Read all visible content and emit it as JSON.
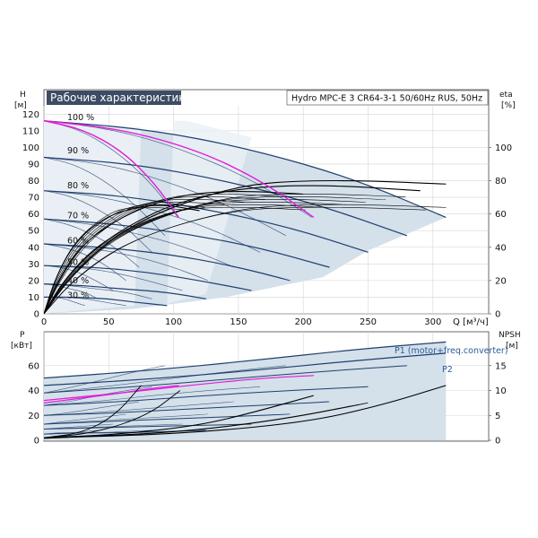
{
  "chart_data": [
    {
      "type": "line",
      "title": "Рабочие характеристики",
      "subtitle": "Hydro MPC-E 3 CR64-3-1 50/60Hz RUS, 50Hz",
      "xlabel": "Q [м³/ч]",
      "ylabel": "H [м]",
      "y2label": "eta [%]",
      "ylabel_main": "H",
      "ylabel_unit": "[м]",
      "y2label_main": "eta",
      "y2label_unit": "[%]",
      "xlabel_text": "Q [м³/ч]",
      "xlim": [
        0,
        330
      ],
      "ylim": [
        0,
        125
      ],
      "y2lim": [
        0,
        125
      ],
      "xticks": [
        0,
        50,
        100,
        150,
        200,
        250,
        300
      ],
      "yticks": [
        0,
        10,
        20,
        30,
        40,
        50,
        60,
        70,
        80,
        90,
        100,
        110,
        120
      ],
      "y2ticks": [
        0,
        20,
        40,
        60,
        80,
        100
      ],
      "grid": true,
      "speed_labels": [
        {
          "text": "100 %",
          "h": 118
        },
        {
          "text": "90 %",
          "h": 98
        },
        {
          "text": "80 %",
          "h": 77
        },
        {
          "text": "70 %",
          "h": 59
        },
        {
          "text": "60 %",
          "h": 44
        },
        {
          "text": "50 %",
          "h": 31
        },
        {
          "text": "40 %",
          "h": 20
        },
        {
          "text": "30 %",
          "h": 11
        }
      ],
      "head_curves_3pump": [
        {
          "speed": "100 %",
          "x": [
            0,
            80,
            160,
            240,
            310
          ],
          "y": [
            116,
            111,
            99,
            81,
            58
          ]
        },
        {
          "speed": "90 %",
          "x": [
            0,
            70,
            140,
            210,
            280
          ],
          "y": [
            94,
            90,
            80,
            66,
            47
          ]
        },
        {
          "speed": "80 %",
          "x": [
            0,
            60,
            125,
            190,
            250
          ],
          "y": [
            74,
            71,
            63,
            52,
            37
          ]
        },
        {
          "speed": "70 %",
          "x": [
            0,
            55,
            110,
            165,
            220
          ],
          "y": [
            57,
            54,
            48,
            40,
            28
          ]
        },
        {
          "speed": "60 %",
          "x": [
            0,
            45,
            95,
            145,
            190
          ],
          "y": [
            42,
            40,
            36,
            29,
            20
          ]
        },
        {
          "speed": "50 %",
          "x": [
            0,
            40,
            80,
            120,
            160
          ],
          "y": [
            29,
            28,
            25,
            20,
            14
          ]
        },
        {
          "speed": "40 %",
          "x": [
            0,
            30,
            60,
            95,
            125
          ],
          "y": [
            18,
            17,
            15,
            13,
            9
          ]
        },
        {
          "speed": "30 %",
          "x": [
            0,
            25,
            50,
            70,
            95
          ],
          "y": [
            10,
            10,
            9,
            7,
            5
          ]
        }
      ],
      "head_curves_2pump": [
        {
          "speed": "100 %",
          "x": [
            0,
            60,
            120,
            170,
            208
          ],
          "y": [
            116,
            110,
            96,
            78,
            58
          ]
        },
        {
          "speed": "100 %",
          "x": [
            0,
            30,
            60,
            85,
            104
          ],
          "y": [
            116,
            110,
            96,
            78,
            58
          ]
        }
      ],
      "system_curves_magenta": [
        {
          "x": [
            0,
            60,
            120,
            170,
            208
          ],
          "y": [
            116,
            111,
            98,
            79,
            58
          ]
        },
        {
          "x": [
            0,
            30,
            60,
            85,
            104
          ],
          "y": [
            116,
            111,
            98,
            79,
            58
          ]
        }
      ],
      "eta_curves": [
        {
          "x": [
            0,
            20,
            50,
            80,
            120,
            160,
            200,
            250,
            310
          ],
          "y": [
            0,
            22,
            44,
            58,
            70,
            78,
            80,
            80,
            78
          ]
        },
        {
          "x": [
            0,
            15,
            40,
            70,
            100,
            140,
            180,
            230,
            290
          ],
          "y": [
            0,
            20,
            40,
            55,
            66,
            74,
            77,
            77,
            74
          ]
        },
        {
          "x": [
            0,
            12,
            30,
            55,
            80,
            110,
            150,
            200
          ],
          "y": [
            0,
            22,
            42,
            56,
            65,
            72,
            74,
            72
          ]
        },
        {
          "x": [
            0,
            10,
            25,
            45,
            65,
            90,
            120
          ],
          "y": [
            0,
            24,
            44,
            57,
            63,
            66,
            62
          ]
        }
      ]
    },
    {
      "type": "line",
      "xlabel": "",
      "ylabel": "P [кВт]",
      "y2label": "NPSH [м]",
      "ylabel_main": "P",
      "ylabel_unit": "[кВт]",
      "y2label_main": "NPSH",
      "y2label_unit": "[м]",
      "xlim": [
        0,
        330
      ],
      "ylim": [
        0,
        80
      ],
      "y2lim": [
        0,
        20
      ],
      "yticks": [
        0,
        20,
        40,
        60
      ],
      "y2ticks": [
        0,
        5,
        10,
        15
      ],
      "series": [
        {
          "name": "P1 (motor+freq.converter)",
          "x": [
            0,
            80,
            160,
            240,
            310
          ],
          "y": [
            50,
            56,
            64,
            73,
            79
          ]
        },
        {
          "name": "P2",
          "x": [
            0,
            80,
            160,
            240,
            310
          ],
          "y": [
            44,
            49,
            56,
            64,
            70
          ]
        }
      ],
      "power_speed_curves": [
        {
          "x": [
            0,
            70,
            140,
            210,
            280
          ],
          "y": [
            38,
            43,
            49,
            55,
            60
          ]
        },
        {
          "x": [
            0,
            60,
            125,
            190,
            250
          ],
          "y": [
            28,
            31,
            36,
            40,
            43
          ]
        },
        {
          "x": [
            0,
            55,
            110,
            165,
            220
          ],
          "y": [
            20,
            22,
            25,
            28,
            31
          ]
        },
        {
          "x": [
            0,
            45,
            95,
            145,
            190
          ],
          "y": [
            13,
            15,
            17,
            19,
            21
          ]
        },
        {
          "x": [
            0,
            40,
            80,
            120,
            160
          ],
          "y": [
            9,
            10,
            11,
            12,
            13
          ]
        },
        {
          "x": [
            0,
            30,
            60,
            95,
            125
          ],
          "y": [
            5,
            6,
            6,
            7,
            8
          ]
        }
      ],
      "npsh_curves": [
        {
          "x": [
            0,
            100,
            200,
            260,
            310
          ],
          "y": [
            0.5,
            1.2,
            3.5,
            7,
            11
          ]
        },
        {
          "x": [
            0,
            100,
            180,
            250
          ],
          "y": [
            0.4,
            1.5,
            4,
            7.5
          ]
        },
        {
          "x": [
            0,
            60,
            120,
            160,
            208
          ],
          "y": [
            0.5,
            1.2,
            3,
            5.5,
            9
          ]
        }
      ],
      "magenta_power": [
        {
          "x": [
            0,
            60,
            120,
            170,
            208
          ],
          "y": [
            32,
            38,
            45,
            50,
            52
          ]
        },
        {
          "x": [
            0,
            30,
            60,
            85,
            104
          ],
          "y": [
            30,
            34,
            38,
            42,
            44
          ]
        }
      ]
    }
  ]
}
